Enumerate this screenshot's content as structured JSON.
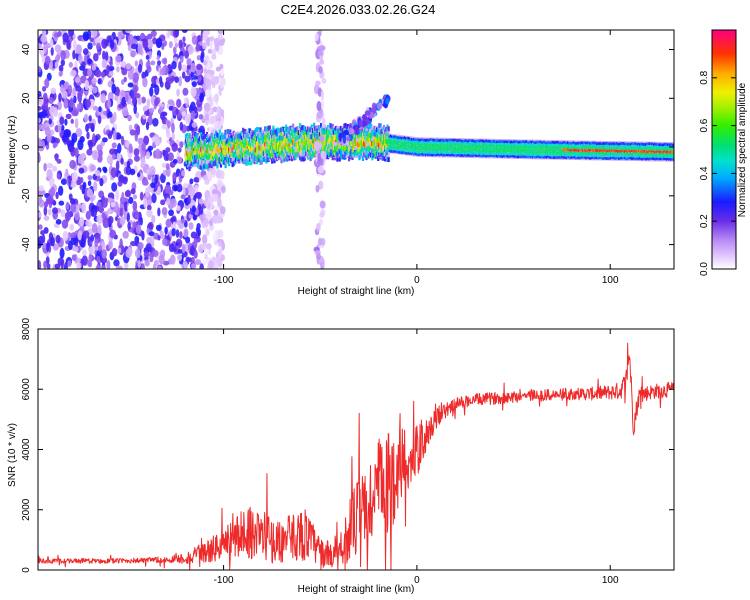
{
  "title": "C2E4.2026.033.02.26.G24",
  "colors": {
    "trace": "#ee2a2a",
    "background": "#ffffff",
    "frame": "#000000"
  },
  "chart_data": [
    {
      "type": "heatmap",
      "name": "spectrogram",
      "xlabel": "Height of straight line (km)",
      "ylabel": "Frequency (Hz)",
      "xlim": [
        -196,
        133
      ],
      "ylim": [
        -50,
        48
      ],
      "x_tick_values": [
        -100,
        0,
        100
      ],
      "x_tick_labels": [
        "-100",
        "0",
        "100"
      ],
      "y_tick_values": [
        40,
        20,
        0,
        -20,
        -40
      ],
      "y_tick_labels": [
        "40",
        "20",
        "0",
        "-20",
        "-40"
      ],
      "colorbar": {
        "label": "Normalized spectral amplitude",
        "range": [
          0,
          1
        ],
        "tick_values": [
          0.0,
          0.2,
          0.4,
          0.6,
          0.8
        ],
        "tick_labels": [
          "0.0",
          "0.2",
          "0.4",
          "0.6",
          "0.8"
        ]
      },
      "features": [
        {
          "label": "diffuse noise",
          "x_range": [
            -196,
            -110
          ],
          "freq_range": [
            -50,
            48
          ],
          "amplitude": 0.15
        },
        {
          "label": "sparse noise",
          "x_range": [
            -110,
            -100
          ],
          "freq_range": [
            -50,
            48
          ],
          "amplitude": 0.05
        },
        {
          "label": "carrier ridge",
          "x_range": [
            -120,
            133
          ],
          "freq_center": [
            [
              -120,
              -2
            ],
            [
              -60,
              2
            ],
            [
              -20,
              2
            ],
            [
              0,
              0
            ],
            [
              60,
              -1
            ],
            [
              133,
              -2
            ]
          ],
          "amplitude": 0.5
        },
        {
          "label": "ghost line",
          "x_range": [
            -52,
            -48
          ],
          "freq_range": [
            -50,
            48
          ],
          "amplitude": 0.08
        },
        {
          "label": "drift arm",
          "x_range": [
            -40,
            -15
          ],
          "freq_range": [
            5,
            20
          ],
          "amplitude": 0.2
        }
      ]
    },
    {
      "type": "line",
      "name": "snr",
      "xlabel": "Height of straight line (km)",
      "ylabel": "SNR (10 * v/v)",
      "xlim": [
        -196,
        133
      ],
      "ylim": [
        0,
        8000
      ],
      "x_tick_values": [
        -100,
        0,
        100
      ],
      "x_tick_labels": [
        "-100",
        "0",
        "100"
      ],
      "y_tick_values": [
        0,
        2000,
        4000,
        6000,
        8000
      ],
      "y_tick_labels": [
        "0",
        "2000",
        "4000",
        "6000",
        "8000"
      ],
      "series": [
        {
          "name": "SNR",
          "x": [
            -196,
            -180,
            -160,
            -140,
            -125,
            -115,
            -105,
            -95,
            -88,
            -80,
            -72,
            -65,
            -58,
            -50,
            -45,
            -40,
            -35,
            -30,
            -25,
            -20,
            -17,
            -15,
            -12,
            -10,
            -7,
            -5,
            -2,
            0,
            5,
            10,
            15,
            20,
            25,
            30,
            40,
            50,
            60,
            70,
            80,
            90,
            100,
            105,
            108,
            110,
            112,
            115,
            120,
            125,
            133
          ],
          "values": [
            300,
            300,
            300,
            320,
            350,
            450,
            700,
            1000,
            1300,
            1150,
            900,
            1100,
            1200,
            600,
            500,
            700,
            1300,
            1800,
            2100,
            2700,
            2800,
            2800,
            3100,
            3400,
            3600,
            3700,
            3700,
            3900,
            4500,
            5000,
            5300,
            5500,
            5600,
            5650,
            5700,
            5750,
            5800,
            5800,
            5850,
            5850,
            5900,
            5950,
            6200,
            7200,
            4800,
            5800,
            5900,
            5950,
            6000
          ],
          "noise_amplitude": [
            80,
            80,
            80,
            90,
            120,
            300,
            450,
            700,
            900,
            900,
            700,
            800,
            900,
            500,
            450,
            700,
            1000,
            1400,
            1700,
            1700,
            1800,
            1800,
            1600,
            1500,
            1300,
            1200,
            1000,
            900,
            500,
            350,
            250,
            220,
            200,
            200,
            200,
            200,
            200,
            200,
            200,
            220,
            250,
            300,
            400,
            400,
            400,
            300,
            250,
            250,
            250
          ]
        }
      ]
    }
  ]
}
